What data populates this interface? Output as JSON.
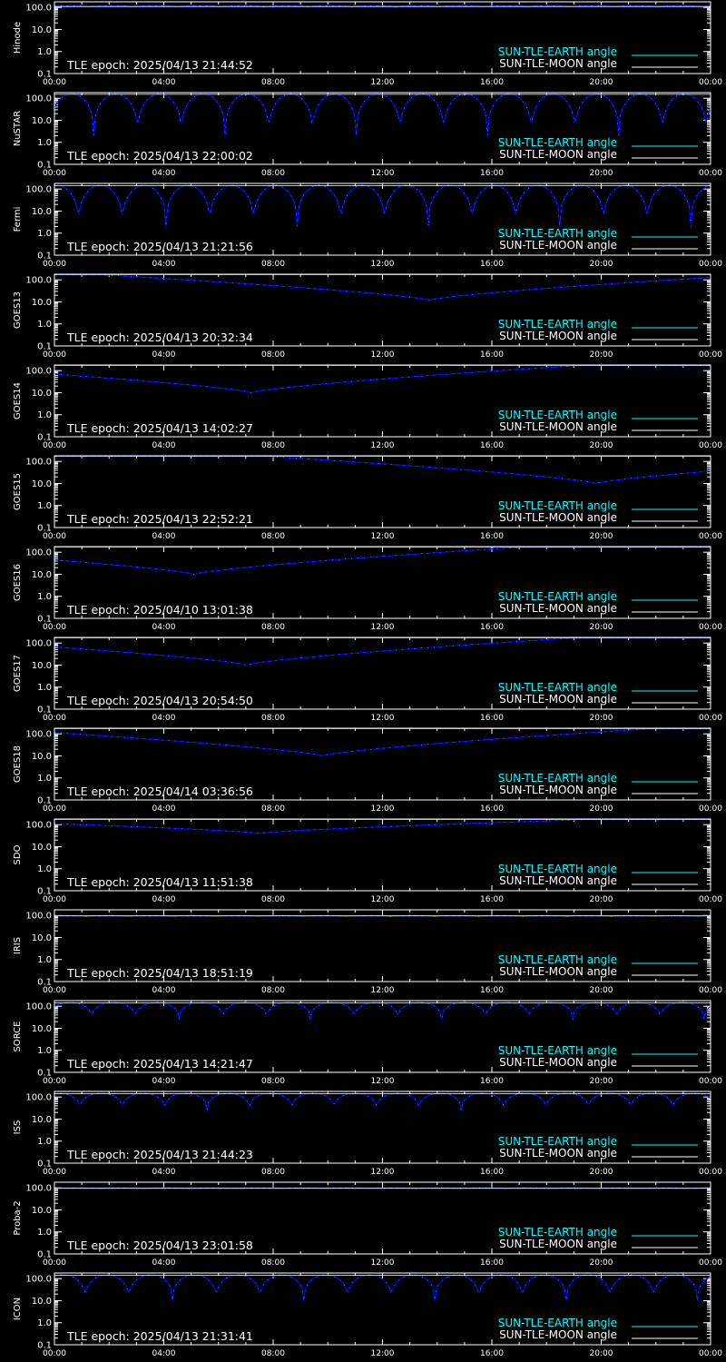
{
  "colors": {
    "background": "#000000",
    "frame": "#ffffff",
    "earth": "#00ffff",
    "moon": "#ffffff",
    "series_line": "#0000ff"
  },
  "legend": {
    "earth_label": "SUN-TLE-EARTH angle",
    "moon_label": "SUN-TLE-MOON angle"
  },
  "y_tick_labels": [
    "100.0",
    "10.0",
    "1.0",
    "0.1"
  ],
  "x_tick_labels": [
    "00:00",
    "04:00",
    "08:00",
    "12:00",
    "16:00",
    "20:00",
    "00:00"
  ],
  "chart_data": [
    {
      "type": "line",
      "panel": "Hinode",
      "y_axis": {
        "label": "Hinode",
        "scale": "log",
        "ylim": [
          0.1,
          180
        ]
      },
      "x_axis": {
        "ticks": [
          "00:00",
          "04:00",
          "08:00",
          "12:00",
          "16:00",
          "20:00",
          "00:00"
        ]
      },
      "epoch_text": "TLE epoch: 2025/04/13 21:44:52",
      "series": [
        {
          "name": "SUN-TLE-EARTH angle",
          "pattern": "periodic",
          "period_hours": 1.6,
          "max": 120,
          "min": 100,
          "phase": 0.2
        },
        {
          "name": "SUN-TLE-MOON angle",
          "pattern": "constant",
          "value": 110
        }
      ]
    },
    {
      "type": "line",
      "panel": "NuSTAR",
      "y_axis": {
        "label": "NuSTAR",
        "scale": "log",
        "ylim": [
          0.1,
          180
        ]
      },
      "x_axis": {
        "ticks": [
          "00:00",
          "04:00",
          "08:00",
          "12:00",
          "16:00",
          "20:00",
          "00:00"
        ]
      },
      "epoch_text": "TLE epoch: 2025/04/13 22:00:02",
      "series": [
        {
          "name": "SUN-TLE-EARTH angle",
          "pattern": "periodic",
          "period_hours": 1.6,
          "max": 160,
          "min": 2,
          "phase": 0.1
        },
        {
          "name": "SUN-TLE-MOON angle",
          "pattern": "constant",
          "value": 150
        }
      ]
    },
    {
      "type": "line",
      "panel": "Fermi",
      "y_axis": {
        "label": "Fermi",
        "scale": "log",
        "ylim": [
          0.1,
          180
        ]
      },
      "x_axis": {
        "ticks": [
          "00:00",
          "04:00",
          "08:00",
          "12:00",
          "16:00",
          "20:00",
          "00:00"
        ]
      },
      "epoch_text": "TLE epoch: 2025/04/13 21:21:56",
      "series": [
        {
          "name": "SUN-TLE-EARTH angle",
          "pattern": "periodic",
          "period_hours": 1.6,
          "max": 150,
          "min": 2,
          "phase": 0.45
        },
        {
          "name": "SUN-TLE-MOON angle",
          "pattern": "constant",
          "value": 140
        }
      ]
    },
    {
      "type": "line",
      "panel": "GOES13",
      "y_axis": {
        "label": "GOES13",
        "scale": "log",
        "ylim": [
          0.1,
          180
        ]
      },
      "x_axis": {
        "ticks": [
          "00:00",
          "04:00",
          "08:00",
          "12:00",
          "16:00",
          "20:00",
          "00:00"
        ]
      },
      "epoch_text": "TLE epoch: 2025/04/13 20:32:34",
      "series": [
        {
          "name": "SUN-TLE-EARTH angle",
          "pattern": "v",
          "min_hour": 13.7,
          "min": 12,
          "max": 170
        },
        {
          "name": "SUN-TLE-MOON angle",
          "pattern": "constant",
          "value": 175
        }
      ]
    },
    {
      "type": "line",
      "panel": "GOES14",
      "y_axis": {
        "label": "GOES14",
        "scale": "log",
        "ylim": [
          0.1,
          180
        ]
      },
      "x_axis": {
        "ticks": [
          "00:00",
          "04:00",
          "08:00",
          "12:00",
          "16:00",
          "20:00",
          "00:00"
        ]
      },
      "epoch_text": "TLE epoch: 2025/04/13 14:02:27",
      "series": [
        {
          "name": "SUN-TLE-EARTH angle",
          "pattern": "v",
          "min_hour": 7.2,
          "min": 10,
          "max": 170
        },
        {
          "name": "SUN-TLE-MOON angle",
          "pattern": "constant",
          "value": 175
        }
      ]
    },
    {
      "type": "line",
      "panel": "GOES15",
      "y_axis": {
        "label": "GOES15",
        "scale": "log",
        "ylim": [
          0.1,
          180
        ]
      },
      "x_axis": {
        "ticks": [
          "00:00",
          "04:00",
          "08:00",
          "12:00",
          "16:00",
          "20:00",
          "00:00"
        ]
      },
      "epoch_text": "TLE epoch: 2025/04/13 22:52:21",
      "series": [
        {
          "name": "SUN-TLE-EARTH angle",
          "pattern": "v",
          "min_hour": 19.8,
          "min": 10,
          "max": 170
        },
        {
          "name": "SUN-TLE-MOON angle",
          "pattern": "constant",
          "value": 175
        }
      ]
    },
    {
      "type": "line",
      "panel": "GOES16",
      "y_axis": {
        "label": "GOES16",
        "scale": "log",
        "ylim": [
          0.1,
          180
        ]
      },
      "x_axis": {
        "ticks": [
          "00:00",
          "04:00",
          "08:00",
          "12:00",
          "16:00",
          "20:00",
          "00:00"
        ]
      },
      "epoch_text": "TLE epoch: 2025/04/10 13:01:38",
      "series": [
        {
          "name": "SUN-TLE-EARTH angle",
          "pattern": "v",
          "min_hour": 5.1,
          "min": 10,
          "max": 170
        },
        {
          "name": "SUN-TLE-MOON angle",
          "pattern": "constant",
          "value": 175
        }
      ]
    },
    {
      "type": "line",
      "panel": "GOES17",
      "y_axis": {
        "label": "GOES17",
        "scale": "log",
        "ylim": [
          0.1,
          180
        ]
      },
      "x_axis": {
        "ticks": [
          "00:00",
          "04:00",
          "08:00",
          "12:00",
          "16:00",
          "20:00",
          "00:00"
        ]
      },
      "epoch_text": "TLE epoch: 2025/04/13 20:54:50",
      "series": [
        {
          "name": "SUN-TLE-EARTH angle",
          "pattern": "v",
          "min_hour": 7.0,
          "min": 10,
          "max": 170
        },
        {
          "name": "SUN-TLE-MOON angle",
          "pattern": "constant",
          "value": 175
        }
      ]
    },
    {
      "type": "line",
      "panel": "GOES18",
      "y_axis": {
        "label": "GOES18",
        "scale": "log",
        "ylim": [
          0.1,
          180
        ]
      },
      "x_axis": {
        "ticks": [
          "00:00",
          "04:00",
          "08:00",
          "12:00",
          "16:00",
          "20:00",
          "00:00"
        ]
      },
      "epoch_text": "TLE epoch: 2025/04/14 03:36:56",
      "series": [
        {
          "name": "SUN-TLE-EARTH angle",
          "pattern": "v",
          "min_hour": 9.8,
          "min": 10,
          "max": 170
        },
        {
          "name": "SUN-TLE-MOON angle",
          "pattern": "constant",
          "value": 175
        }
      ]
    },
    {
      "type": "line",
      "panel": "SDO",
      "y_axis": {
        "label": "SDO",
        "scale": "log",
        "ylim": [
          0.1,
          180
        ]
      },
      "x_axis": {
        "ticks": [
          "00:00",
          "04:00",
          "08:00",
          "12:00",
          "16:00",
          "20:00",
          "00:00"
        ]
      },
      "epoch_text": "TLE epoch: 2025/04/13 11:51:38",
      "series": [
        {
          "name": "SUN-TLE-EARTH angle",
          "pattern": "v",
          "min_hour": 7.5,
          "min": 40,
          "max": 170
        },
        {
          "name": "SUN-TLE-MOON angle",
          "pattern": "constant",
          "value": 175
        }
      ]
    },
    {
      "type": "line",
      "panel": "IRIS",
      "y_axis": {
        "label": "IRIS",
        "scale": "log",
        "ylim": [
          0.1,
          180
        ]
      },
      "x_axis": {
        "ticks": [
          "00:00",
          "04:00",
          "08:00",
          "12:00",
          "16:00",
          "20:00",
          "00:00"
        ]
      },
      "epoch_text": "TLE epoch: 2025/04/13 18:51:19",
      "series": [
        {
          "name": "SUN-TLE-EARTH angle",
          "pattern": "periodic",
          "period_hours": 1.6,
          "max": 100,
          "min": 85,
          "phase": 0.3
        },
        {
          "name": "SUN-TLE-MOON angle",
          "pattern": "constant",
          "value": 95
        }
      ]
    },
    {
      "type": "line",
      "panel": "SORCE",
      "y_axis": {
        "label": "SORCE",
        "scale": "log",
        "ylim": [
          0.1,
          180
        ]
      },
      "x_axis": {
        "ticks": [
          "00:00",
          "04:00",
          "08:00",
          "12:00",
          "16:00",
          "20:00",
          "00:00"
        ]
      },
      "epoch_text": "TLE epoch: 2025/04/13 14:21:47",
      "series": [
        {
          "name": "SUN-TLE-EARTH angle",
          "pattern": "periodic",
          "period_hours": 1.6,
          "max": 150,
          "min": 25,
          "phase": 0.15
        },
        {
          "name": "SUN-TLE-MOON angle",
          "pattern": "constant",
          "value": 140
        }
      ]
    },
    {
      "type": "line",
      "panel": "ISS",
      "y_axis": {
        "label": "ISS",
        "scale": "log",
        "ylim": [
          0.1,
          180
        ]
      },
      "x_axis": {
        "ticks": [
          "00:00",
          "04:00",
          "08:00",
          "12:00",
          "16:00",
          "20:00",
          "00:00"
        ]
      },
      "epoch_text": "TLE epoch: 2025/04/13 21:44:23",
      "series": [
        {
          "name": "SUN-TLE-EARTH angle",
          "pattern": "periodic",
          "period_hours": 1.55,
          "max": 150,
          "min": 25,
          "phase": 0.4
        },
        {
          "name": "SUN-TLE-MOON angle",
          "pattern": "constant",
          "value": 140
        }
      ]
    },
    {
      "type": "line",
      "panel": "Proba-2",
      "y_axis": {
        "label": "Proba-2",
        "scale": "log",
        "ylim": [
          0.1,
          180
        ]
      },
      "x_axis": {
        "ticks": [
          "00:00",
          "04:00",
          "08:00",
          "12:00",
          "16:00",
          "20:00",
          "00:00"
        ]
      },
      "epoch_text": "TLE epoch: 2025/04/13 23:01:58",
      "series": [
        {
          "name": "SUN-TLE-EARTH angle",
          "pattern": "periodic",
          "period_hours": 1.65,
          "max": 100,
          "min": 90,
          "phase": 0.0
        },
        {
          "name": "SUN-TLE-MOON angle",
          "pattern": "constant",
          "value": 95
        }
      ]
    },
    {
      "type": "line",
      "panel": "ICON",
      "y_axis": {
        "label": "ICON",
        "scale": "log",
        "ylim": [
          0.1,
          180
        ]
      },
      "x_axis": {
        "ticks": [
          "00:00",
          "04:00",
          "08:00",
          "12:00",
          "16:00",
          "20:00",
          "00:00"
        ]
      },
      "epoch_text": "TLE epoch: 2025/04/13 21:31:41",
      "series": [
        {
          "name": "SUN-TLE-EARTH angle",
          "pattern": "periodic",
          "period_hours": 1.6,
          "max": 150,
          "min": 10,
          "phase": 0.3
        },
        {
          "name": "SUN-TLE-MOON angle",
          "pattern": "constant",
          "value": 140
        }
      ]
    }
  ]
}
